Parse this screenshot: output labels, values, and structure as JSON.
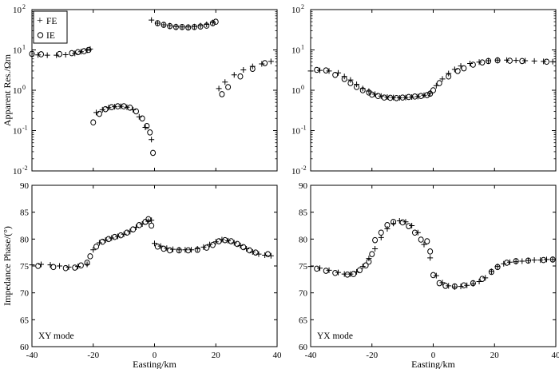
{
  "figure": {
    "xlabel": "Easting/km",
    "legend": {
      "placement": "top-left",
      "entries": [
        {
          "marker": "+",
          "label": "FE"
        },
        {
          "marker": "o",
          "label": "IE"
        }
      ]
    }
  },
  "chart_data": [
    {
      "id": "res_xy",
      "type": "scatter",
      "xlabel": "",
      "ylabel": "Apparent Res./Ωm",
      "xlim": [
        -40,
        40
      ],
      "ylim": [
        0.01,
        100
      ],
      "yscale": "log",
      "xticks": [
        "-40",
        "-20",
        "0",
        "20",
        "40"
      ],
      "xticks_shown": false,
      "yticks": [
        {
          "v": 0.01,
          "b": "10",
          "e": "-2"
        },
        {
          "v": 0.1,
          "b": "10",
          "e": "-1"
        },
        {
          "v": 1,
          "b": "10",
          "e": "0"
        },
        {
          "v": 10,
          "b": "10",
          "e": "1"
        },
        {
          "v": 100,
          "b": "10",
          "e": "2"
        }
      ],
      "mode_label": "",
      "series": [
        {
          "name": "FE",
          "marker": "+",
          "x": [
            -41,
            -38,
            -35,
            -32,
            -29,
            -26,
            -24,
            -22,
            -21,
            -19,
            -17,
            -15,
            -13,
            -11,
            -9,
            -7,
            -5,
            -3,
            -1,
            -1,
            1,
            3,
            5,
            7,
            9,
            11,
            13,
            15,
            17,
            19,
            21,
            23,
            26,
            29,
            32,
            35,
            38
          ],
          "y": [
            7.6,
            7.5,
            7.4,
            7.4,
            7.6,
            8.2,
            9.0,
            9.8,
            10.5,
            0.28,
            0.33,
            0.37,
            0.39,
            0.4,
            0.38,
            0.33,
            0.22,
            0.12,
            0.06,
            55,
            46,
            42,
            40,
            38,
            37,
            37,
            38,
            40,
            43,
            48,
            1.1,
            1.6,
            2.4,
            3.2,
            3.9,
            4.5,
            5.2
          ]
        },
        {
          "name": "IE",
          "marker": "o",
          "x": [
            -40,
            -37,
            -31,
            -27,
            -25,
            -23,
            -21.5,
            -20,
            -18,
            -16,
            -14,
            -12,
            -10,
            -8,
            -6,
            -4,
            -2.5,
            -1.5,
            -0.5,
            1,
            3,
            5,
            7,
            9,
            11,
            13,
            15,
            17,
            19,
            20,
            22,
            24,
            28,
            32,
            36
          ],
          "y": [
            8.0,
            7.8,
            7.9,
            8.3,
            8.8,
            9.3,
            10.0,
            0.16,
            0.26,
            0.34,
            0.38,
            0.4,
            0.4,
            0.37,
            0.3,
            0.2,
            0.13,
            0.09,
            0.028,
            46,
            42,
            39,
            37,
            37,
            36,
            37,
            38,
            40,
            46,
            50,
            0.8,
            1.2,
            2.2,
            3.4,
            4.7
          ]
        }
      ]
    },
    {
      "id": "res_yx",
      "type": "scatter",
      "xlabel": "",
      "ylabel": "",
      "xlim": [
        -40,
        40
      ],
      "ylim": [
        0.01,
        100
      ],
      "yscale": "log",
      "xticks": [
        "-40",
        "-20",
        "0",
        "20",
        "40"
      ],
      "xticks_shown": false,
      "yticks": [
        {
          "v": 0.01,
          "b": "10",
          "e": "-2"
        },
        {
          "v": 0.1,
          "b": "10",
          "e": "-1"
        },
        {
          "v": 1,
          "b": "10",
          "e": "0"
        },
        {
          "v": 10,
          "b": "10",
          "e": "1"
        },
        {
          "v": 100,
          "b": "10",
          "e": "2"
        }
      ],
      "mode_label": "",
      "series": [
        {
          "name": "FE",
          "marker": "+",
          "x": [
            -40,
            -37,
            -34,
            -31,
            -29,
            -27,
            -25,
            -23,
            -21,
            -19,
            -17,
            -15,
            -13,
            -11,
            -9,
            -7,
            -5,
            -3,
            -1,
            1,
            3,
            5,
            7,
            9,
            12,
            15,
            18,
            21,
            24,
            27,
            30,
            33,
            36,
            39
          ],
          "y": [
            3.0,
            3.1,
            3.0,
            2.7,
            2.2,
            1.8,
            1.4,
            1.1,
            0.95,
            0.8,
            0.72,
            0.68,
            0.66,
            0.65,
            0.66,
            0.68,
            0.7,
            0.75,
            0.85,
            1.3,
            1.9,
            2.6,
            3.3,
            4.0,
            4.6,
            5.0,
            5.4,
            5.6,
            5.6,
            5.5,
            5.4,
            5.3,
            5.2,
            5.1
          ]
        },
        {
          "name": "IE",
          "marker": "o",
          "x": [
            -38,
            -35,
            -32,
            -29,
            -27,
            -25,
            -23,
            -21,
            -20,
            -18,
            -16,
            -14,
            -12,
            -10,
            -8,
            -6,
            -4,
            -2,
            -1,
            0,
            2,
            5,
            8,
            10,
            13,
            16,
            18,
            21,
            25,
            29,
            37
          ],
          "y": [
            3.2,
            3.1,
            2.4,
            1.9,
            1.5,
            1.2,
            1.0,
            0.88,
            0.78,
            0.72,
            0.66,
            0.65,
            0.64,
            0.66,
            0.68,
            0.7,
            0.72,
            0.76,
            0.82,
            1.0,
            1.5,
            2.2,
            3.0,
            3.5,
            4.3,
            4.9,
            5.3,
            5.5,
            5.4,
            5.3,
            5.1
          ]
        }
      ]
    },
    {
      "id": "phase_xy",
      "type": "scatter",
      "xlabel": "Easting/km",
      "ylabel": "Impedance Phase/(°)",
      "xlim": [
        -40,
        40
      ],
      "ylim": [
        60,
        90
      ],
      "yscale": "linear",
      "xticks": [
        "-40",
        "-20",
        "0",
        "20",
        "40"
      ],
      "xticks_shown": true,
      "yticks": [
        {
          "v": 60,
          "t": "60"
        },
        {
          "v": 65,
          "t": "65"
        },
        {
          "v": 70,
          "t": "70"
        },
        {
          "v": 75,
          "t": "75"
        },
        {
          "v": 80,
          "t": "80"
        },
        {
          "v": 85,
          "t": "85"
        },
        {
          "v": 90,
          "t": "90"
        }
      ],
      "mode_label": "XY mode",
      "series": [
        {
          "name": "FE",
          "marker": "+",
          "x": [
            -40,
            -37,
            -34,
            -31,
            -28,
            -25,
            -22,
            -20,
            -18,
            -16,
            -14,
            -12,
            -10,
            -8,
            -6,
            -4,
            -2,
            -1,
            0,
            2,
            4,
            6,
            8,
            10,
            12,
            14,
            16,
            18,
            20,
            22,
            24,
            26,
            28,
            30,
            32,
            34,
            36,
            38
          ],
          "y": [
            75.2,
            75.3,
            75.2,
            75.0,
            74.8,
            74.9,
            75.3,
            78.0,
            79.3,
            79.8,
            80.2,
            80.5,
            80.9,
            81.4,
            82.2,
            82.8,
            83.3,
            83.5,
            79.2,
            78.7,
            78.3,
            78.1,
            78.0,
            78.0,
            78.0,
            78.2,
            78.5,
            79.0,
            79.5,
            79.9,
            79.7,
            79.3,
            78.8,
            78.2,
            77.6,
            77.2,
            77.0,
            76.9
          ]
        },
        {
          "name": "IE",
          "marker": "o",
          "x": [
            -38,
            -33,
            -29,
            -26,
            -24,
            -22,
            -21,
            -19,
            -17,
            -15,
            -13,
            -11,
            -9,
            -7,
            -5,
            -3,
            -2,
            -1,
            1,
            3,
            5,
            8,
            11,
            14,
            17,
            19,
            21,
            23,
            25,
            27,
            29,
            31,
            33,
            37
          ],
          "y": [
            75.0,
            74.8,
            74.6,
            74.7,
            75.1,
            75.6,
            76.8,
            78.6,
            79.5,
            80.0,
            80.4,
            80.7,
            81.2,
            81.8,
            82.6,
            83.2,
            83.7,
            82.5,
            78.6,
            78.2,
            77.9,
            77.9,
            77.9,
            78.0,
            78.4,
            78.9,
            79.6,
            79.8,
            79.6,
            79.1,
            78.5,
            77.9,
            77.5,
            77.2
          ]
        }
      ]
    },
    {
      "id": "phase_yx",
      "type": "scatter",
      "xlabel": "Easting/km",
      "ylabel": "",
      "xlim": [
        -40,
        40
      ],
      "ylim": [
        60,
        90
      ],
      "yscale": "linear",
      "xticks": [
        "-40",
        "-20",
        "0",
        "20",
        "40"
      ],
      "xticks_shown": true,
      "yticks": [
        {
          "v": 60,
          "t": "60"
        },
        {
          "v": 65,
          "t": "65"
        },
        {
          "v": 70,
          "t": "70"
        },
        {
          "v": 75,
          "t": "75"
        },
        {
          "v": 80,
          "t": "80"
        },
        {
          "v": 85,
          "t": "85"
        },
        {
          "v": 90,
          "t": "90"
        }
      ],
      "mode_label": "YX mode",
      "series": [
        {
          "name": "FE",
          "marker": "+",
          "x": [
            -40,
            -37,
            -34,
            -31,
            -29,
            -27,
            -25,
            -23,
            -21,
            -19,
            -17,
            -15,
            -13,
            -11,
            -9,
            -7,
            -5,
            -3,
            -1,
            1,
            3,
            5,
            7,
            9,
            11,
            13,
            15,
            17,
            19,
            21,
            23,
            25,
            27,
            29,
            31,
            33,
            35,
            37,
            39
          ],
          "y": [
            74.9,
            74.6,
            74.2,
            73.8,
            73.5,
            73.5,
            73.9,
            74.9,
            76.4,
            78.2,
            80.3,
            81.9,
            82.9,
            83.4,
            83.2,
            82.5,
            81.2,
            79.0,
            76.5,
            73.2,
            71.9,
            71.3,
            71.1,
            71.2,
            71.4,
            71.7,
            72.1,
            72.8,
            74.0,
            74.9,
            75.4,
            75.7,
            75.8,
            75.9,
            76.0,
            76.1,
            76.1,
            76.2,
            76.2
          ]
        },
        {
          "name": "IE",
          "marker": "o",
          "x": [
            -38,
            -35,
            -32,
            -28,
            -26,
            -24,
            -22,
            -21,
            -20,
            -19,
            -17,
            -15,
            -13,
            -10,
            -8,
            -6,
            -4,
            -2,
            -1,
            0,
            2,
            4,
            7,
            10,
            13,
            16,
            19,
            21,
            24,
            27,
            31,
            36,
            39
          ],
          "y": [
            74.5,
            74.1,
            73.7,
            73.4,
            73.5,
            74.2,
            75.1,
            75.8,
            77.2,
            79.8,
            81.2,
            82.6,
            83.2,
            83.1,
            82.4,
            81.2,
            79.9,
            79.6,
            77.7,
            73.3,
            71.8,
            71.3,
            71.2,
            71.4,
            71.8,
            72.6,
            73.9,
            74.8,
            75.6,
            75.9,
            76.0,
            76.1,
            76.2
          ]
        }
      ]
    }
  ]
}
